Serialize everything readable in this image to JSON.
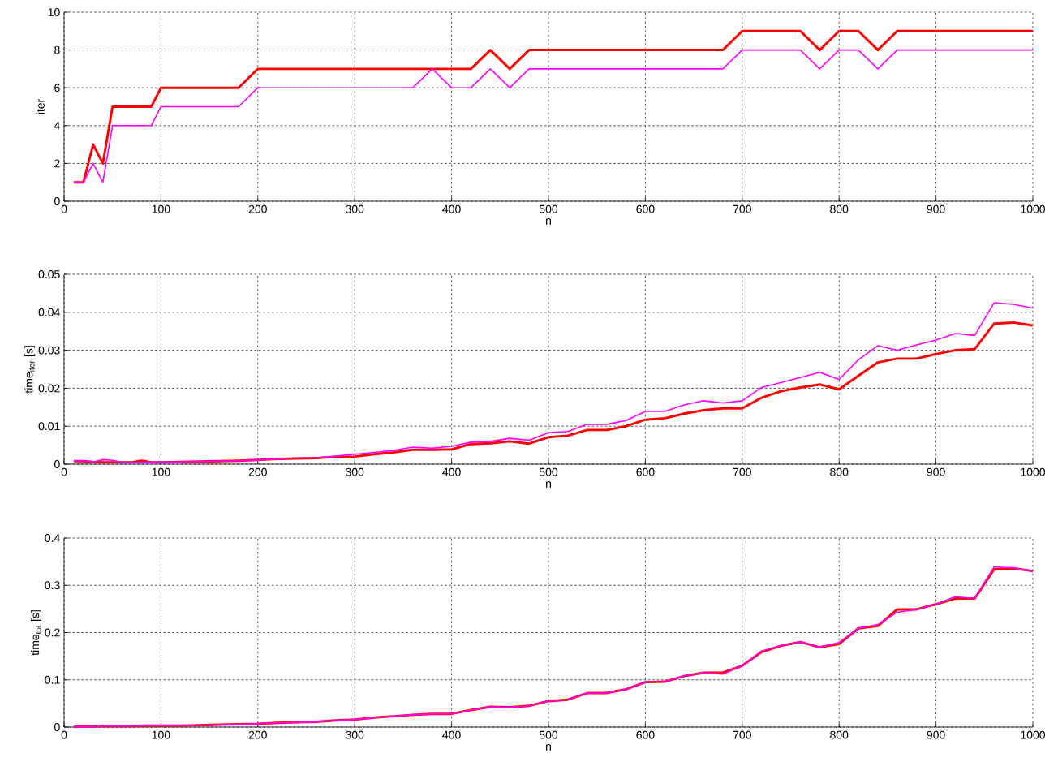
{
  "chart_data": [
    {
      "type": "line",
      "xlabel": "n",
      "ylabel": "iter",
      "grid": true,
      "xlim": [
        0,
        1000
      ],
      "ylim": [
        0,
        10
      ],
      "xticks": [
        0,
        100,
        200,
        300,
        400,
        500,
        600,
        700,
        800,
        900,
        1000
      ],
      "yticks": [
        0,
        2,
        4,
        6,
        8,
        10
      ],
      "x": [
        10,
        20,
        30,
        40,
        50,
        60,
        70,
        80,
        90,
        100,
        120,
        140,
        160,
        180,
        200,
        220,
        240,
        260,
        280,
        300,
        320,
        340,
        360,
        380,
        400,
        420,
        440,
        460,
        480,
        500,
        520,
        540,
        560,
        580,
        600,
        620,
        640,
        660,
        680,
        700,
        720,
        740,
        760,
        780,
        800,
        820,
        840,
        860,
        880,
        900,
        920,
        940,
        960,
        980,
        1000
      ],
      "series": [
        {
          "color": "#ff0000",
          "values": [
            1,
            1,
            3,
            2,
            5,
            5,
            5,
            5,
            5,
            6,
            6,
            6,
            6,
            6,
            7,
            7,
            7,
            7,
            7,
            7,
            7,
            7,
            7,
            7,
            7,
            7,
            8,
            7,
            8,
            8,
            8,
            8,
            8,
            8,
            8,
            8,
            8,
            8,
            8,
            9,
            9,
            9,
            9,
            8,
            9,
            9,
            8,
            9,
            9,
            9,
            9,
            9,
            9,
            9,
            9
          ]
        },
        {
          "color": "#ff00ff",
          "values": [
            1,
            1,
            2,
            1,
            4,
            4,
            4,
            4,
            4,
            5,
            5,
            5,
            5,
            5,
            6,
            6,
            6,
            6,
            6,
            6,
            6,
            6,
            6,
            7,
            6,
            6,
            7,
            6,
            7,
            7,
            7,
            7,
            7,
            7,
            7,
            7,
            7,
            7,
            7,
            8,
            8,
            8,
            8,
            7,
            8,
            8,
            7,
            8,
            8,
            8,
            8,
            8,
            8,
            8,
            8
          ]
        }
      ]
    },
    {
      "type": "line",
      "xlabel": "n",
      "ylabel": "time$_{iter}$ [s]",
      "grid": true,
      "xlim": [
        0,
        1000
      ],
      "ylim": [
        0,
        0.05
      ],
      "xticks": [
        0,
        100,
        200,
        300,
        400,
        500,
        600,
        700,
        800,
        900,
        1000
      ],
      "yticks": [
        0,
        0.01,
        0.02,
        0.03,
        0.04,
        0.05
      ],
      "x": [
        10,
        20,
        30,
        40,
        50,
        60,
        70,
        80,
        90,
        100,
        120,
        140,
        160,
        180,
        200,
        220,
        240,
        260,
        280,
        300,
        320,
        340,
        360,
        380,
        400,
        420,
        440,
        460,
        480,
        500,
        520,
        540,
        560,
        580,
        600,
        620,
        640,
        660,
        680,
        700,
        720,
        740,
        760,
        780,
        800,
        820,
        840,
        860,
        880,
        900,
        920,
        940,
        960,
        980,
        1000
      ],
      "series": [
        {
          "color": "#ff0000",
          "values": [
            0.0008,
            0.0008,
            0.0006,
            0.0005,
            0.0005,
            0.0005,
            0.0005,
            0.0009,
            0.0005,
            0.0005,
            0.0006,
            0.0007,
            0.0008,
            0.0009,
            0.0011,
            0.0014,
            0.0015,
            0.0016,
            0.0019,
            0.002,
            0.0026,
            0.0031,
            0.0038,
            0.0038,
            0.0039,
            0.0053,
            0.0055,
            0.006,
            0.0054,
            0.0071,
            0.0075,
            0.009,
            0.009,
            0.01,
            0.0117,
            0.0121,
            0.0133,
            0.0142,
            0.0147,
            0.0147,
            0.0175,
            0.0192,
            0.0202,
            0.021,
            0.0197,
            0.0233,
            0.0268,
            0.0278,
            0.0278,
            0.029,
            0.03,
            0.0303,
            0.037,
            0.0373,
            0.0365
          ]
        },
        {
          "color": "#ff00ff",
          "values": [
            0.0009,
            0.0009,
            0.0006,
            0.0012,
            0.001,
            0.0005,
            0.0005,
            0.0005,
            0.0006,
            0.0006,
            0.0006,
            0.0007,
            0.0008,
            0.0009,
            0.0011,
            0.0014,
            0.0016,
            0.0017,
            0.0021,
            0.0026,
            0.0031,
            0.0036,
            0.0045,
            0.0042,
            0.0047,
            0.0058,
            0.006,
            0.0068,
            0.0063,
            0.0083,
            0.0086,
            0.0105,
            0.0105,
            0.0115,
            0.0139,
            0.0139,
            0.0156,
            0.0167,
            0.0161,
            0.0167,
            0.0202,
            0.0215,
            0.0228,
            0.0242,
            0.0223,
            0.0275,
            0.0312,
            0.03,
            0.0314,
            0.0327,
            0.0344,
            0.0339,
            0.0425,
            0.0421,
            0.0411
          ]
        }
      ]
    },
    {
      "type": "line",
      "xlabel": "n",
      "ylabel": "time$_{tot}$ [s]",
      "grid": true,
      "xlim": [
        0,
        1000
      ],
      "ylim": [
        0,
        0.4
      ],
      "xticks": [
        0,
        100,
        200,
        300,
        400,
        500,
        600,
        700,
        800,
        900,
        1000
      ],
      "yticks": [
        0,
        0.1,
        0.2,
        0.3,
        0.4
      ],
      "x": [
        10,
        20,
        30,
        40,
        50,
        60,
        70,
        80,
        90,
        100,
        120,
        140,
        160,
        180,
        200,
        220,
        240,
        260,
        280,
        300,
        320,
        340,
        360,
        380,
        400,
        420,
        440,
        460,
        480,
        500,
        520,
        540,
        560,
        580,
        600,
        620,
        640,
        660,
        680,
        700,
        720,
        740,
        760,
        780,
        800,
        820,
        840,
        860,
        880,
        900,
        920,
        940,
        960,
        980,
        1000
      ],
      "series": [
        {
          "color": "#ff0000",
          "values": [
            0.001,
            0.001,
            0.001,
            0.002,
            0.002,
            0.002,
            0.002,
            0.003,
            0.003,
            0.003,
            0.003,
            0.004,
            0.005,
            0.006,
            0.007,
            0.009,
            0.01,
            0.011,
            0.014,
            0.016,
            0.02,
            0.023,
            0.026,
            0.028,
            0.028,
            0.036,
            0.043,
            0.042,
            0.045,
            0.055,
            0.058,
            0.072,
            0.072,
            0.08,
            0.095,
            0.096,
            0.108,
            0.115,
            0.115,
            0.13,
            0.159,
            0.172,
            0.18,
            0.169,
            0.176,
            0.209,
            0.214,
            0.249,
            0.249,
            0.26,
            0.272,
            0.272,
            0.334,
            0.336,
            0.33
          ]
        },
        {
          "color": "#ff00ff",
          "values": [
            0.001,
            0.001,
            0.001,
            0.002,
            0.002,
            0.002,
            0.002,
            0.003,
            0.003,
            0.003,
            0.003,
            0.004,
            0.005,
            0.006,
            0.007,
            0.009,
            0.01,
            0.011,
            0.014,
            0.016,
            0.02,
            0.023,
            0.026,
            0.028,
            0.028,
            0.036,
            0.043,
            0.042,
            0.045,
            0.055,
            0.058,
            0.072,
            0.072,
            0.08,
            0.095,
            0.096,
            0.108,
            0.115,
            0.112,
            0.13,
            0.161,
            0.172,
            0.18,
            0.169,
            0.179,
            0.209,
            0.217,
            0.243,
            0.249,
            0.26,
            0.276,
            0.272,
            0.339,
            0.337,
            0.33
          ]
        }
      ]
    }
  ]
}
